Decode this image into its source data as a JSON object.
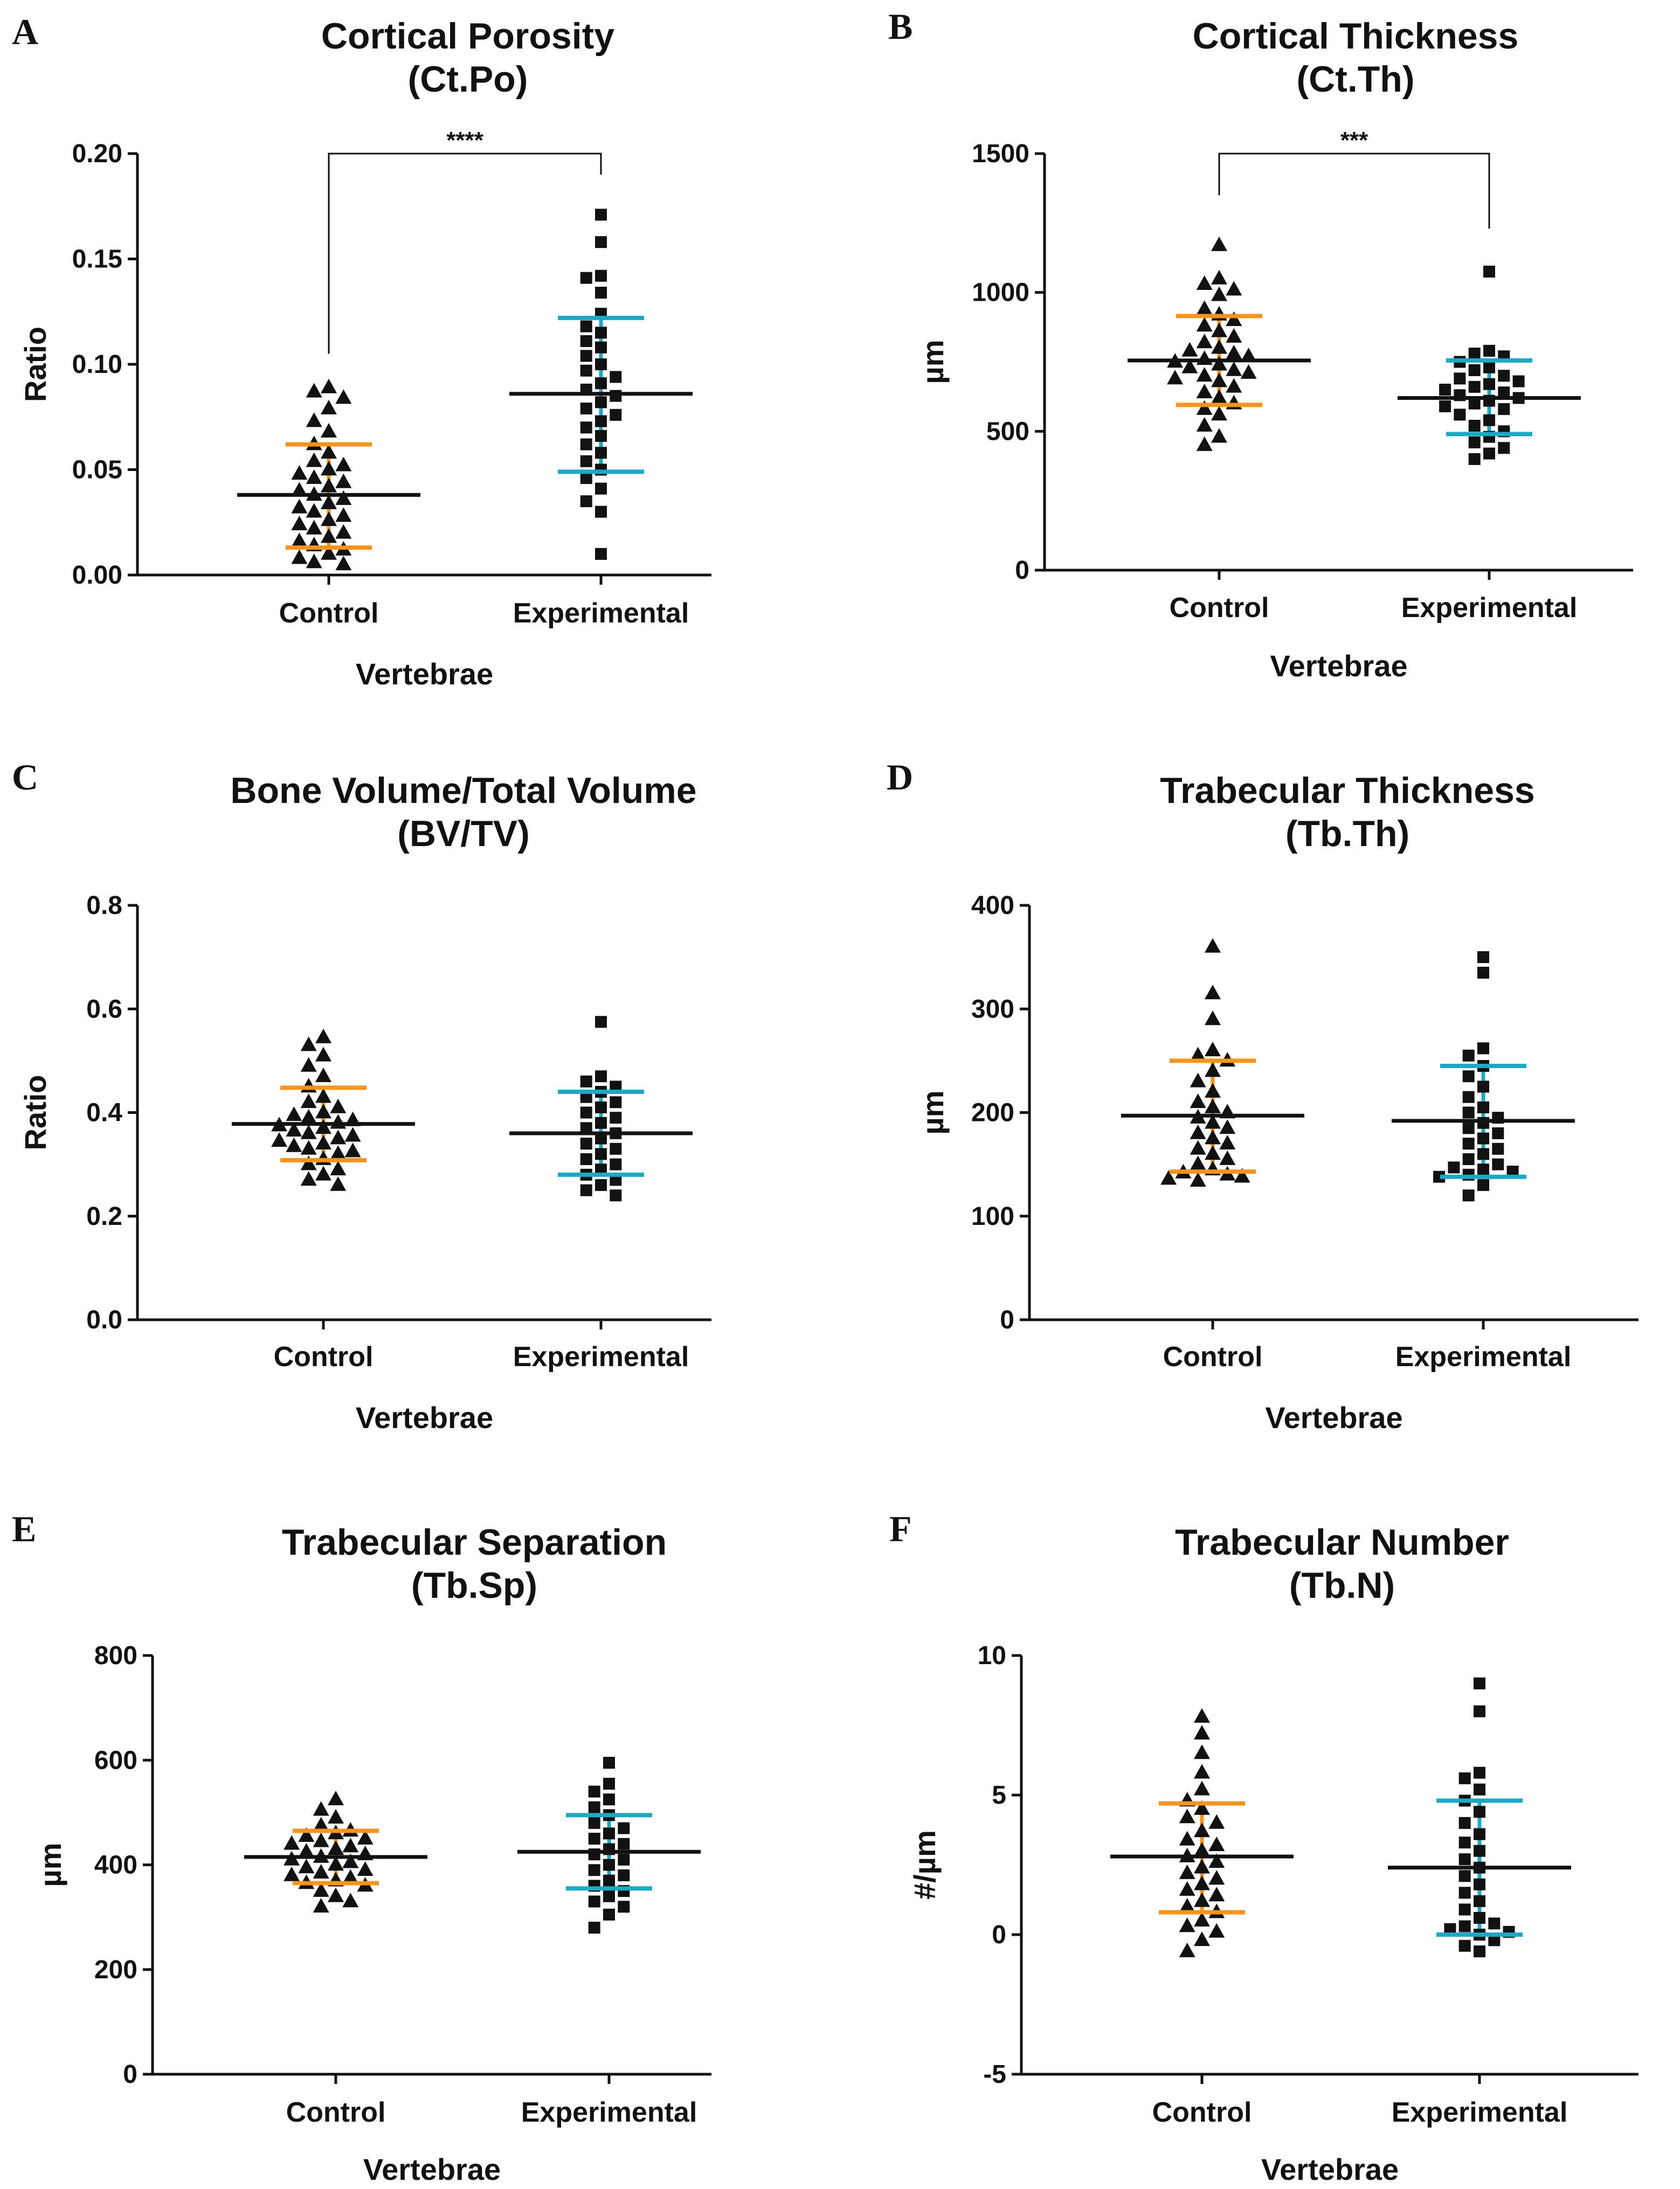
{
  "colors": {
    "control": "#F7941D",
    "experimental": "#1FA8C4",
    "mean": "#111111",
    "marker": "#111111"
  },
  "chart_data": [
    {
      "type": "scatter",
      "letter": "A",
      "title": "Cortical Porosity",
      "subtitle": "(Ct.Po)",
      "xlabel": "Vertebrae",
      "ylabel": "Ratio",
      "ylim": [
        0,
        0.2
      ],
      "yticks": [
        "0.00",
        "0.05",
        "0.10",
        "0.15",
        "0.20"
      ],
      "yticks_values": [
        0,
        0.05,
        0.1,
        0.15,
        0.2
      ],
      "categories": [
        "Control",
        "Experimental"
      ],
      "significance": {
        "label": "****",
        "ctrl_top": 0.105,
        "exp_top": 0.19,
        "bar_y": 0.2
      },
      "series": [
        {
          "name": "Control",
          "marker": "triangle",
          "mean": 0.038,
          "sd_low": 0.013,
          "sd_high": 0.062,
          "values": [
            0.089,
            0.087,
            0.084,
            0.079,
            0.073,
            0.068,
            0.062,
            0.058,
            0.054,
            0.052,
            0.05,
            0.048,
            0.046,
            0.044,
            0.042,
            0.04,
            0.038,
            0.036,
            0.034,
            0.032,
            0.03,
            0.028,
            0.026,
            0.024,
            0.022,
            0.02,
            0.018,
            0.016,
            0.014,
            0.012,
            0.01,
            0.008,
            0.006,
            0.005
          ]
        },
        {
          "name": "Experimental",
          "marker": "square",
          "mean": 0.086,
          "sd_low": 0.049,
          "sd_high": 0.122,
          "values": [
            0.171,
            0.158,
            0.142,
            0.141,
            0.134,
            0.124,
            0.118,
            0.115,
            0.111,
            0.108,
            0.104,
            0.1,
            0.097,
            0.094,
            0.091,
            0.088,
            0.085,
            0.082,
            0.079,
            0.076,
            0.073,
            0.07,
            0.066,
            0.062,
            0.058,
            0.054,
            0.05,
            0.046,
            0.041,
            0.035,
            0.03,
            0.01
          ]
        }
      ]
    },
    {
      "type": "scatter",
      "letter": "B",
      "title": "Cortical Thickness",
      "subtitle": "(Ct.Th)",
      "xlabel": "Vertebrae",
      "ylabel": "µm",
      "ylim": [
        0,
        1500
      ],
      "yticks": [
        "0",
        "500",
        "1000",
        "1500"
      ],
      "yticks_values": [
        0,
        500,
        1000,
        1500
      ],
      "categories": [
        "Control",
        "Experimental"
      ],
      "significance": {
        "label": "***",
        "ctrl_top": 1350,
        "exp_top": 1230,
        "bar_y": 1500
      },
      "series": [
        {
          "name": "Control",
          "marker": "triangle",
          "mean": 755,
          "sd_low": 595,
          "sd_high": 915,
          "values": [
            1170,
            1050,
            1030,
            1010,
            990,
            940,
            920,
            900,
            880,
            860,
            840,
            820,
            800,
            790,
            780,
            770,
            760,
            750,
            740,
            730,
            720,
            710,
            700,
            690,
            680,
            660,
            640,
            620,
            600,
            580,
            560,
            520,
            480,
            450
          ]
        },
        {
          "name": "Experimental",
          "marker": "square",
          "mean": 620,
          "sd_low": 490,
          "sd_high": 755,
          "values": [
            1075,
            790,
            780,
            770,
            750,
            730,
            720,
            700,
            690,
            680,
            670,
            660,
            650,
            640,
            630,
            620,
            610,
            600,
            590,
            580,
            560,
            540,
            520,
            500,
            480,
            460,
            440,
            420,
            400
          ]
        }
      ]
    },
    {
      "type": "scatter",
      "letter": "C",
      "title": "Bone Volume/Total Volume",
      "subtitle": "(BV/TV)",
      "xlabel": "Vertebrae",
      "ylabel": "Ratio",
      "ylim": [
        0,
        0.8
      ],
      "yticks": [
        "0.0",
        "0.2",
        "0.4",
        "0.6",
        "0.8"
      ],
      "yticks_values": [
        0,
        0.2,
        0.4,
        0.6,
        0.8
      ],
      "categories": [
        "Control",
        "Experimental"
      ],
      "series": [
        {
          "name": "Control",
          "marker": "triangle",
          "mean": 0.378,
          "sd_low": 0.308,
          "sd_high": 0.448,
          "values": [
            0.545,
            0.53,
            0.51,
            0.49,
            0.47,
            0.45,
            0.43,
            0.42,
            0.41,
            0.4,
            0.395,
            0.39,
            0.385,
            0.38,
            0.375,
            0.37,
            0.365,
            0.36,
            0.355,
            0.35,
            0.345,
            0.34,
            0.335,
            0.33,
            0.325,
            0.32,
            0.31,
            0.3,
            0.29,
            0.28,
            0.27,
            0.26
          ]
        },
        {
          "name": "Experimental",
          "marker": "square",
          "mean": 0.36,
          "sd_low": 0.28,
          "sd_high": 0.44,
          "values": [
            0.575,
            0.47,
            0.46,
            0.45,
            0.44,
            0.43,
            0.42,
            0.41,
            0.4,
            0.39,
            0.38,
            0.37,
            0.36,
            0.35,
            0.34,
            0.33,
            0.32,
            0.31,
            0.3,
            0.29,
            0.28,
            0.27,
            0.26,
            0.25,
            0.24
          ]
        }
      ]
    },
    {
      "type": "scatter",
      "letter": "D",
      "title": "Trabecular Thickness",
      "subtitle": "(Tb.Th)",
      "xlabel": "Vertebrae",
      "ylabel": "µm",
      "ylim": [
        0,
        400
      ],
      "yticks": [
        "0",
        "100",
        "200",
        "300",
        "400"
      ],
      "yticks_values": [
        0,
        100,
        200,
        300,
        400
      ],
      "categories": [
        "Control",
        "Experimental"
      ],
      "series": [
        {
          "name": "Control",
          "marker": "triangle",
          "mean": 197,
          "sd_low": 143,
          "sd_high": 250,
          "values": [
            360,
            315,
            290,
            260,
            255,
            250,
            240,
            230,
            220,
            210,
            205,
            200,
            195,
            190,
            185,
            180,
            175,
            170,
            165,
            160,
            155,
            150,
            145,
            142,
            140,
            138,
            136,
            134
          ]
        },
        {
          "name": "Experimental",
          "marker": "square",
          "mean": 192,
          "sd_low": 138,
          "sd_high": 245,
          "values": [
            350,
            335,
            262,
            255,
            245,
            235,
            225,
            215,
            205,
            200,
            195,
            190,
            185,
            180,
            175,
            170,
            165,
            160,
            155,
            150,
            147,
            145,
            143,
            140,
            138,
            130,
            120
          ]
        }
      ]
    },
    {
      "type": "scatter",
      "letter": "E",
      "title": "Trabecular Separation",
      "subtitle": "(Tb.Sp)",
      "xlabel": "Vertebrae",
      "ylabel": "µm",
      "ylim": [
        0,
        800
      ],
      "yticks": [
        "0",
        "200",
        "400",
        "600",
        "800"
      ],
      "yticks_values": [
        0,
        200,
        400,
        600,
        800
      ],
      "categories": [
        "Control",
        "Experimental"
      ],
      "series": [
        {
          "name": "Control",
          "marker": "triangle",
          "mean": 415,
          "sd_low": 365,
          "sd_high": 465,
          "values": [
            525,
            505,
            490,
            475,
            465,
            460,
            455,
            450,
            445,
            440,
            435,
            430,
            425,
            420,
            415,
            410,
            405,
            400,
            395,
            390,
            385,
            380,
            375,
            370,
            365,
            360,
            350,
            340,
            330,
            320
          ]
        },
        {
          "name": "Experimental",
          "marker": "square",
          "mean": 425,
          "sd_low": 355,
          "sd_high": 495,
          "values": [
            595,
            555,
            540,
            525,
            510,
            495,
            480,
            470,
            460,
            450,
            440,
            430,
            420,
            410,
            400,
            390,
            380,
            370,
            360,
            350,
            340,
            330,
            320,
            305,
            280
          ]
        }
      ]
    },
    {
      "type": "scatter",
      "letter": "F",
      "title": "Trabecular Number",
      "subtitle": "(Tb.N)",
      "xlabel": "Vertebrae",
      "ylabel": "#/µm",
      "ylim": [
        -5,
        10
      ],
      "yticks": [
        "-5",
        "0",
        "5",
        "10"
      ],
      "yticks_values": [
        -5,
        0,
        5,
        10
      ],
      "categories": [
        "Control",
        "Experimental"
      ],
      "series": [
        {
          "name": "Control",
          "marker": "triangle",
          "mean": 2.8,
          "sd_low": 0.8,
          "sd_high": 4.7,
          "values": [
            7.8,
            7.2,
            6.5,
            5.8,
            5.2,
            4.8,
            4.5,
            4.2,
            4.0,
            3.7,
            3.4,
            3.2,
            3.0,
            2.8,
            2.6,
            2.4,
            2.2,
            2.0,
            1.8,
            1.6,
            1.4,
            1.2,
            1.0,
            0.8,
            0.5,
            0.3,
            0.1,
            -0.2,
            -0.6
          ]
        },
        {
          "name": "Experimental",
          "marker": "square",
          "mean": 2.4,
          "sd_low": 0.0,
          "sd_high": 4.8,
          "values": [
            9.0,
            8.0,
            5.8,
            5.6,
            5.2,
            4.8,
            4.4,
            4.0,
            3.6,
            3.3,
            3.0,
            2.7,
            2.4,
            2.1,
            1.8,
            1.5,
            1.2,
            0.9,
            0.6,
            0.4,
            0.3,
            0.2,
            0.1,
            0.0,
            -0.2,
            -0.4,
            -0.6
          ]
        }
      ]
    }
  ]
}
